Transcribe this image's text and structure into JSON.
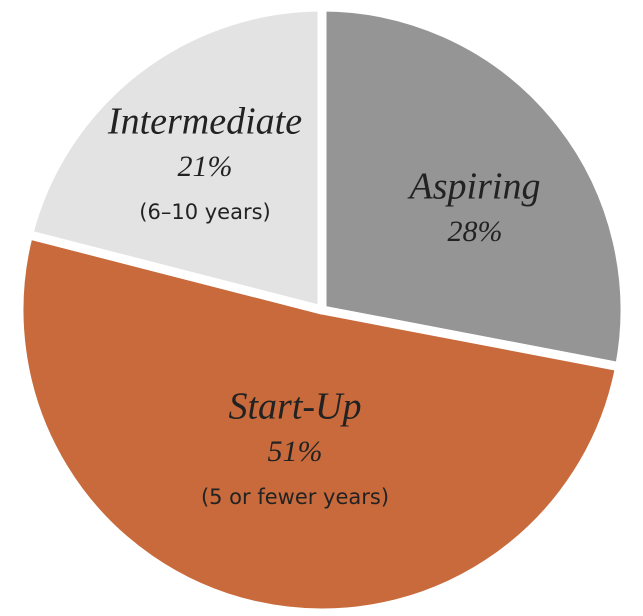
{
  "chart_data": {
    "type": "pie",
    "categories": [
      "Aspiring",
      "Start-Up",
      "Intermediate"
    ],
    "values": [
      28,
      51,
      21
    ],
    "value_labels": [
      "28%",
      "51%",
      "21%"
    ],
    "descriptions": [
      null,
      "(5 or fewer years)",
      "(6–10 years)"
    ],
    "colors": [
      "#959595",
      "#c86a3b",
      "#e3e3e3"
    ]
  }
}
